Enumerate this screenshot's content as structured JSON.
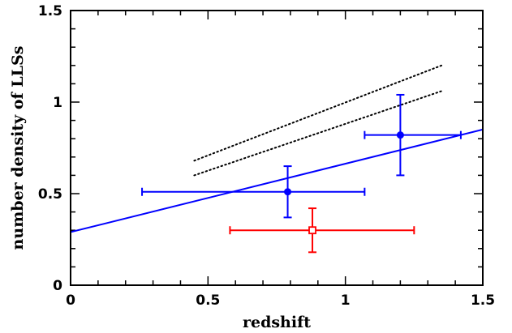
{
  "chart_data": {
    "type": "scatter",
    "title": "",
    "xlabel": "redshift",
    "ylabel": "number density of LLSs",
    "xlim": [
      0,
      1.5
    ],
    "ylim": [
      0,
      1.5
    ],
    "grid": false,
    "x_ticks": [
      {
        "value": 0,
        "label": "0"
      },
      {
        "value": 0.5,
        "label": "0.5"
      },
      {
        "value": 1,
        "label": "1"
      },
      {
        "value": 1.5,
        "label": "1.5"
      }
    ],
    "y_ticks": [
      {
        "value": 0,
        "label": "0"
      },
      {
        "value": 0.5,
        "label": "0.5"
      },
      {
        "value": 1,
        "label": "1"
      },
      {
        "value": 1.5,
        "label": "1.5"
      }
    ],
    "series": [
      {
        "kind": "points",
        "marker": "filled-circle",
        "color": "#0000ff",
        "points": [
          {
            "x": 0.79,
            "y": 0.51,
            "xerr": [
              0.26,
              1.07
            ],
            "yerr": [
              0.37,
              0.65
            ]
          },
          {
            "x": 1.2,
            "y": 0.82,
            "xerr": [
              1.07,
              1.42
            ],
            "yerr": [
              0.6,
              1.04
            ]
          }
        ]
      },
      {
        "kind": "points",
        "marker": "open-square",
        "color": "#ff0000",
        "points": [
          {
            "x": 0.88,
            "y": 0.3,
            "xerr": [
              0.58,
              1.25
            ],
            "yerr": [
              0.18,
              0.42
            ]
          }
        ]
      },
      {
        "kind": "line",
        "style": "solid",
        "color": "#0000ff",
        "x": [
          0,
          1.5
        ],
        "y": [
          0.29,
          0.85
        ]
      },
      {
        "kind": "line",
        "style": "dotted",
        "color": "#000000",
        "x": [
          0.45,
          1.35
        ],
        "y": [
          0.68,
          1.2
        ]
      },
      {
        "kind": "line",
        "style": "dotted",
        "color": "#000000",
        "x": [
          0.45,
          1.35
        ],
        "y": [
          0.6,
          1.06
        ]
      }
    ]
  }
}
